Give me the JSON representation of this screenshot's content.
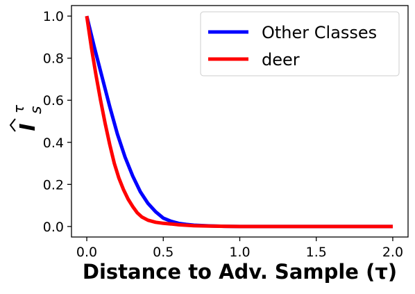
{
  "chart_data": {
    "type": "line",
    "xlabel": "Distance to Adv. Sample (τ)",
    "ylabel_symbol": "I",
    "ylabel_superscript": "τ",
    "ylabel_subscript": "s",
    "xlim": [
      -0.1,
      2.1
    ],
    "ylim": [
      -0.05,
      1.05
    ],
    "x_ticks": [
      0.0,
      0.5,
      1.0,
      1.5,
      2.0
    ],
    "x_tick_labels": [
      "0.0",
      "0.5",
      "1.0",
      "1.5",
      "2.0"
    ],
    "y_ticks": [
      0.0,
      0.2,
      0.4,
      0.6,
      0.8,
      1.0
    ],
    "y_tick_labels": [
      "0.0",
      "0.2",
      "0.4",
      "0.6",
      "0.8",
      "1.0"
    ],
    "grid": false,
    "legend_position": "top-right",
    "series": [
      {
        "name": "Other Classes",
        "color": "#0000ff",
        "x": [
          0.0,
          0.05,
          0.1,
          0.15,
          0.2,
          0.25,
          0.3,
          0.35,
          0.4,
          0.45,
          0.5,
          0.55,
          0.6,
          0.65,
          0.7,
          0.8,
          0.9,
          1.0,
          1.2,
          1.5,
          1.8,
          2.0
        ],
        "y": [
          1.0,
          0.85,
          0.71,
          0.57,
          0.44,
          0.33,
          0.24,
          0.165,
          0.11,
          0.07,
          0.04,
          0.025,
          0.015,
          0.01,
          0.006,
          0.003,
          0.001,
          0.0,
          0.0,
          0.0,
          0.0,
          0.0
        ]
      },
      {
        "name": "deer",
        "color": "#ff0000",
        "x": [
          0.0,
          0.03,
          0.06,
          0.09,
          0.12,
          0.15,
          0.18,
          0.21,
          0.24,
          0.27,
          0.3,
          0.33,
          0.36,
          0.4,
          0.45,
          0.5,
          0.55,
          0.6,
          0.7,
          0.8,
          0.9,
          1.0,
          1.5,
          2.0
        ],
        "y": [
          1.0,
          0.85,
          0.72,
          0.6,
          0.49,
          0.39,
          0.3,
          0.23,
          0.175,
          0.13,
          0.095,
          0.065,
          0.045,
          0.03,
          0.02,
          0.015,
          0.012,
          0.008,
          0.004,
          0.002,
          0.001,
          0.0,
          0.0,
          0.0
        ]
      }
    ]
  }
}
